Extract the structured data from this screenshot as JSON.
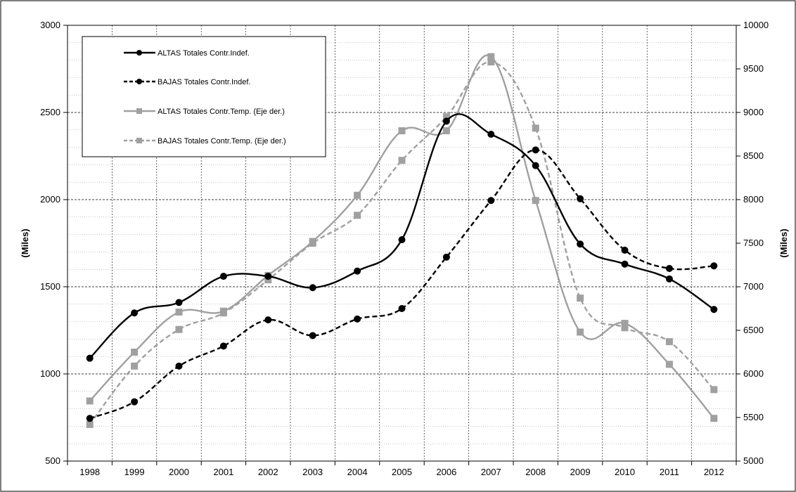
{
  "chart_data": {
    "type": "line",
    "categories": [
      "1998",
      "1999",
      "2000",
      "2001",
      "2002",
      "2003",
      "2004",
      "2005",
      "2006",
      "2007",
      "2008",
      "2009",
      "2010",
      "2011",
      "2012"
    ],
    "y_left": {
      "label": "(Miles)",
      "range": [
        500,
        3000
      ],
      "ticks": [
        500,
        1000,
        1500,
        2000,
        2500,
        3000
      ]
    },
    "y_right": {
      "label": "(Miles)",
      "range": [
        5000,
        10000
      ],
      "ticks": [
        5000,
        5500,
        6000,
        6500,
        7000,
        7500,
        8000,
        8500,
        9000,
        9500,
        10000
      ]
    },
    "grid": true,
    "legend_position": "top-left",
    "series": [
      {
        "name": "ALTAS Totales Contr.Indef.",
        "axis": "left",
        "color": "#000000",
        "dash": "solid",
        "marker": "circle",
        "values": [
          1090,
          1350,
          1410,
          1560,
          1560,
          1495,
          1590,
          1770,
          2450,
          2375,
          2195,
          1745,
          1630,
          1545,
          1370
        ]
      },
      {
        "name": "BAJAS Totales Contr.Indef.",
        "axis": "left",
        "color": "#000000",
        "dash": "dashed",
        "marker": "circle",
        "values": [
          745,
          840,
          1045,
          1160,
          1310,
          1220,
          1315,
          1375,
          1670,
          1995,
          2285,
          2005,
          1710,
          1605,
          1620
        ]
      },
      {
        "name": "ALTAS Totales Contr.Temp. (Eje der.)",
        "axis": "right",
        "color": "#a0a0a0",
        "dash": "solid",
        "marker": "square",
        "values": [
          5690,
          6250,
          6710,
          6720,
          7130,
          7520,
          8050,
          8790,
          8790,
          9640,
          7990,
          6480,
          6580,
          6110,
          5490
        ]
      },
      {
        "name": "BAJAS Totales Contr.Temp. (Eje der.)",
        "axis": "right",
        "color": "#a0a0a0",
        "dash": "dashed",
        "marker": "square",
        "values": [
          5420,
          6090,
          6510,
          6700,
          7080,
          7500,
          7820,
          8450,
          8950,
          9580,
          8820,
          6870,
          6530,
          6370,
          5820
        ]
      }
    ]
  }
}
